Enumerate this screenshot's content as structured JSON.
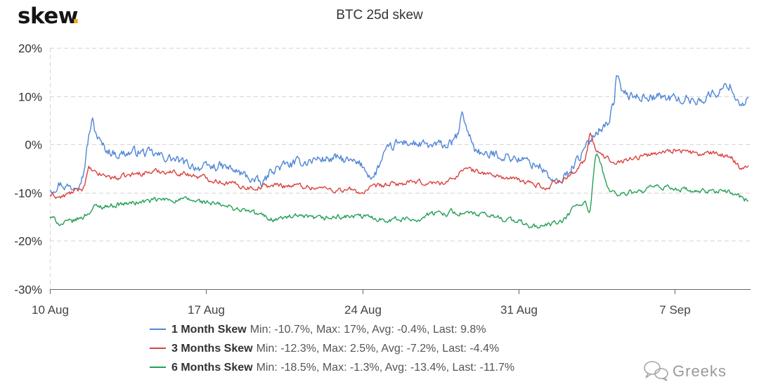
{
  "brand": {
    "name": "skew",
    "dot": "."
  },
  "watermark": {
    "text": "Greeks",
    "icon": "wechat-icon"
  },
  "chart_data": {
    "type": "line",
    "title": "BTC 25d skew",
    "xlabel": "",
    "ylabel": "",
    "grid": true,
    "legend_position": "bottom",
    "y_ticks": [
      {
        "value": 20,
        "label": "20%"
      },
      {
        "value": 10,
        "label": "10%"
      },
      {
        "value": 0,
        "label": "0%"
      },
      {
        "value": -10,
        "label": "-10%"
      },
      {
        "value": -20,
        "label": "-20%"
      },
      {
        "value": -30,
        "label": "-30%"
      }
    ],
    "ylim": [
      -30,
      20
    ],
    "x_ticks": [
      {
        "day": 0,
        "label": "10 Aug"
      },
      {
        "day": 7,
        "label": "17 Aug"
      },
      {
        "day": 14,
        "label": "24 Aug"
      },
      {
        "day": 21,
        "label": "31 Aug"
      },
      {
        "day": 28,
        "label": "7 Sep"
      }
    ],
    "xlim_days": [
      0,
      31.3
    ],
    "series": [
      {
        "name": "1 Month Skew",
        "stats": "Min: -10.7%, Max: 17%, Avg: -0.4%, Last: 9.8%",
        "color": "#4f86d6",
        "noise": 1.6,
        "x": [
          0,
          0.4,
          1,
          1.5,
          1.75,
          1.9,
          2,
          2.3,
          2.5,
          3,
          4,
          4.5,
          5,
          5.5,
          6,
          7,
          7.5,
          8,
          8.5,
          9,
          9.5,
          10,
          11,
          12,
          13,
          14,
          14.5,
          14.8,
          15,
          15.5,
          16,
          17,
          18,
          18.3,
          18.5,
          18.7,
          19,
          19.5,
          20,
          21,
          22,
          22.5,
          22.8,
          23,
          23.5,
          24,
          24.5,
          25,
          25.3,
          25.4,
          25.6,
          26,
          27,
          28,
          29,
          29.5,
          30,
          30.5,
          30.8,
          31.1,
          31.3
        ],
        "y": [
          -9.5,
          -8,
          -9,
          -6,
          2,
          5,
          3,
          0,
          -1,
          -2,
          -1.5,
          -2,
          -2.5,
          -3,
          -4,
          -5,
          -4.5,
          -5,
          -6,
          -7,
          -8.5,
          -5,
          -4,
          -3,
          -3,
          -4.5,
          -7,
          -4,
          -2,
          0,
          0.5,
          -0.5,
          0,
          2,
          6.5,
          3,
          -0.5,
          -2.5,
          -2,
          -3,
          -4.5,
          -7.5,
          -8.5,
          -7,
          -4,
          -1,
          3,
          4.5,
          9,
          15.5,
          11,
          10,
          10,
          9.5,
          9,
          10,
          11,
          12.5,
          9,
          8.5,
          9.8
        ]
      },
      {
        "name": "3 Months Skew",
        "stats": "Min: -12.3%, Max: 2.5%, Avg: -7.2%, Last: -4.4%",
        "color": "#d9423f",
        "noise": 0.9,
        "x": [
          0,
          0.5,
          1,
          1.5,
          1.75,
          2,
          3,
          4,
          5,
          6,
          7,
          8,
          9,
          10,
          11,
          12,
          13,
          13.5,
          14,
          14.5,
          15,
          16,
          17,
          17.5,
          18,
          18.3,
          18.5,
          19,
          20,
          21,
          22,
          22.3,
          22.6,
          23,
          23.5,
          24,
          24.2,
          24.5,
          24.8,
          25,
          25.5,
          26,
          27,
          28,
          29,
          30,
          30.5,
          31,
          31.3
        ],
        "y": [
          -10.5,
          -11,
          -10,
          -9,
          -5,
          -6,
          -7,
          -6,
          -5.5,
          -6,
          -7,
          -8,
          -9,
          -8.5,
          -8.5,
          -9,
          -9.5,
          -9.5,
          -10,
          -9,
          -8.5,
          -8,
          -8,
          -8,
          -7.5,
          -6,
          -5,
          -5.5,
          -6.5,
          -7.5,
          -8.5,
          -9.5,
          -7.5,
          -7.5,
          -5.5,
          -3,
          2,
          -1.5,
          -2.5,
          -3,
          -3.5,
          -3,
          -2,
          -1,
          -2,
          -2,
          -2.5,
          -5,
          -4.4
        ]
      },
      {
        "name": "6 Months Skew",
        "stats": "Min: -18.5%, Max: -1.3%, Avg: -13.4%, Last: -11.7%",
        "color": "#26a057",
        "noise": 0.9,
        "x": [
          0,
          0.5,
          1,
          1.5,
          2,
          3,
          4,
          5,
          6,
          7,
          8,
          9,
          10,
          11,
          12,
          13,
          14,
          15,
          16,
          16.5,
          17,
          18,
          19,
          20,
          21,
          21.5,
          22,
          22.5,
          23,
          23.5,
          24,
          24.2,
          24.4,
          24.5,
          24.8,
          25,
          25.5,
          26,
          26.5,
          27,
          28,
          29,
          30,
          30.5,
          31,
          31.3
        ],
        "y": [
          -15,
          -16.5,
          -16,
          -15,
          -13,
          -12.5,
          -12,
          -11.5,
          -11.5,
          -12,
          -13,
          -14,
          -15.5,
          -15,
          -15.5,
          -15,
          -15,
          -15.5,
          -15.5,
          -15.5,
          -14.5,
          -14,
          -14.5,
          -15,
          -16,
          -17,
          -17,
          -16.5,
          -16,
          -13,
          -12,
          -15,
          -5,
          -1.5,
          -6,
          -9,
          -10.5,
          -10,
          -10,
          -9,
          -9,
          -10,
          -9.5,
          -10,
          -11,
          -11.7
        ]
      }
    ]
  }
}
